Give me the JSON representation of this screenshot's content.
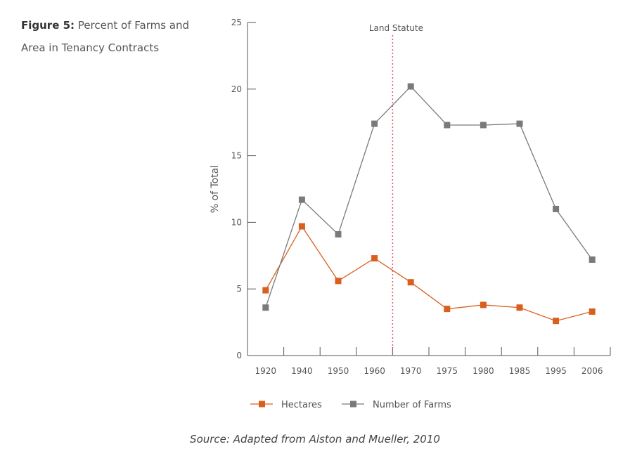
{
  "caption": {
    "label": "Figure 5:",
    "text": " Percent of Farms and Area in Tenancy Contracts"
  },
  "source": "Source:  Adapted from Alston and Mueller, 2010",
  "colors": {
    "hectares": "#d95f1e",
    "farms": "#7a7a7a",
    "statute_line": "#e05a6a",
    "axis": "#555555"
  },
  "chart_data": {
    "type": "line",
    "title": "",
    "xlabel": "",
    "ylabel": "% of Total",
    "categories": [
      "1920",
      "1940",
      "1950",
      "1960",
      "1970",
      "1975",
      "1980",
      "1985",
      "1995",
      "2006"
    ],
    "ylim": [
      0,
      25
    ],
    "yticks": [
      0,
      5,
      10,
      15,
      20,
      25
    ],
    "grid": false,
    "legend_position": "bottom",
    "series": [
      {
        "name": "Hectares",
        "values": [
          4.9,
          9.7,
          5.6,
          7.3,
          5.5,
          3.5,
          3.8,
          3.6,
          2.6,
          3.3
        ]
      },
      {
        "name": "Number of Farms",
        "values": [
          3.6,
          11.7,
          9.1,
          17.4,
          20.2,
          17.3,
          17.3,
          17.4,
          11.0,
          7.2
        ]
      }
    ],
    "annotations": [
      {
        "text": "Land Statute",
        "between": [
          "1960",
          "1970"
        ]
      }
    ]
  }
}
